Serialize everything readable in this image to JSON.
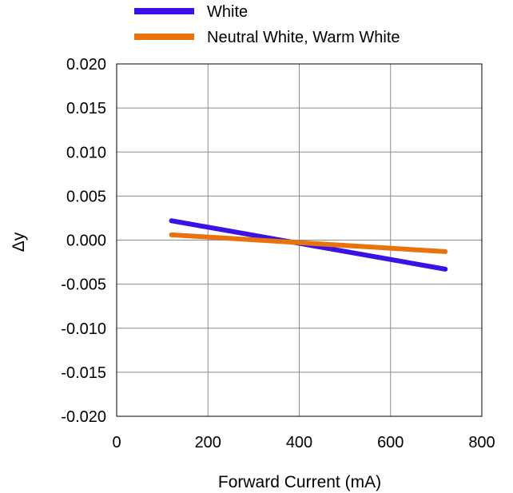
{
  "chart_data": {
    "type": "line",
    "title": "",
    "xlabel": "Forward Current (mA)",
    "ylabel": "Δy",
    "xlim": [
      0,
      800
    ],
    "ylim": [
      -0.02,
      0.02
    ],
    "x_ticks": [
      "0",
      "200",
      "400",
      "600",
      "800"
    ],
    "y_ticks": [
      "0.020",
      "0.015",
      "0.010",
      "0.005",
      "0.000",
      "-0.005",
      "-0.010",
      "-0.015",
      "-0.020"
    ],
    "grid": true,
    "legend_position": "top",
    "series": [
      {
        "name": "White",
        "color": "#3a12e6",
        "x": [
          120,
          720
        ],
        "y": [
          0.0022,
          -0.0033
        ]
      },
      {
        "name": "Neutral White, Warm White",
        "color": "#e8730d",
        "x": [
          120,
          720
        ],
        "y": [
          0.0006,
          -0.0013
        ]
      }
    ]
  }
}
